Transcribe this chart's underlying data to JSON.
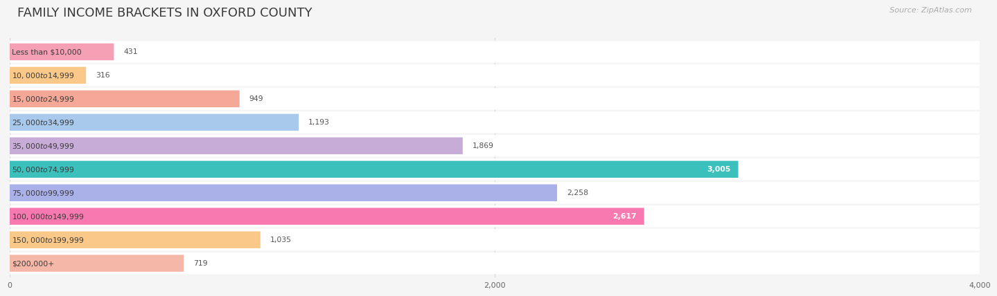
{
  "title": "FAMILY INCOME BRACKETS IN OXFORD COUNTY",
  "source": "Source: ZipAtlas.com",
  "categories": [
    "Less than $10,000",
    "$10,000 to $14,999",
    "$15,000 to $24,999",
    "$25,000 to $34,999",
    "$35,000 to $49,999",
    "$50,000 to $74,999",
    "$75,000 to $99,999",
    "$100,000 to $149,999",
    "$150,000 to $199,999",
    "$200,000+"
  ],
  "values": [
    431,
    316,
    949,
    1193,
    1869,
    3005,
    2258,
    2617,
    1035,
    719
  ],
  "bar_colors": [
    "#f5a0b5",
    "#fac98a",
    "#f5a898",
    "#a8c8ec",
    "#c8acd8",
    "#3cc0bc",
    "#aab0e8",
    "#f878b0",
    "#fac98a",
    "#f5b8a8"
  ],
  "xlim": [
    0,
    4000
  ],
  "xticks": [
    0,
    2000,
    4000
  ],
  "background_color": "#f5f5f5",
  "row_bg_color": "#ffffff",
  "title_color": "#3a3a3a",
  "value_color_outside": "#555555",
  "value_color_inside": "#ffffff",
  "value_inside_bars": [
    5,
    7
  ],
  "grid_color": "#d8d8d8",
  "title_fontsize": 13,
  "source_fontsize": 8,
  "label_fontsize": 7.8,
  "value_fontsize": 7.8,
  "tick_fontsize": 8
}
